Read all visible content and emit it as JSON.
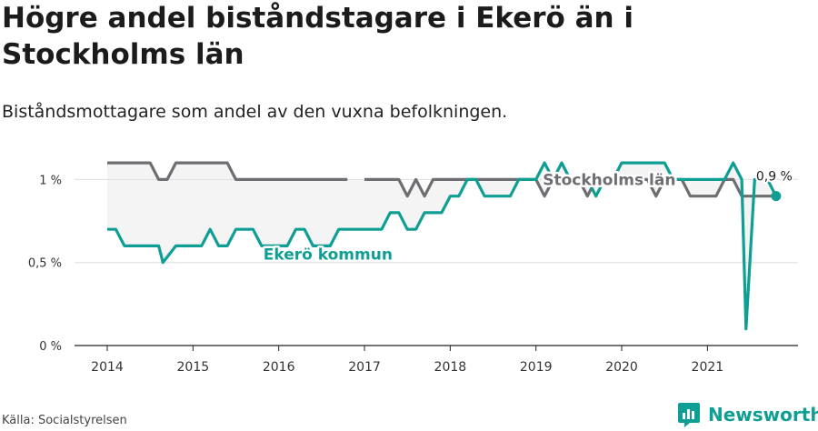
{
  "title": "Högre andel biståndstagare i Ekerö än i Stockholms län",
  "subtitle": "Biståndsmottagare som andel av den vuxna befolkningen.",
  "source": "Källa: Socialstyrelsen",
  "brand": "Newsworthy",
  "colors": {
    "ekero": "#0f9e93",
    "stockholm": "#6e6e72",
    "fill": "#f4f4f4",
    "grid": "#dddddd",
    "axis": "#222222"
  },
  "chart_data": {
    "type": "line",
    "xlim": [
      2014,
      2021.95
    ],
    "ylim": [
      0,
      1.15
    ],
    "x_ticks": [
      {
        "value": 2014,
        "label": "2014"
      },
      {
        "value": 2015,
        "label": "2015"
      },
      {
        "value": 2016,
        "label": "2016"
      },
      {
        "value": 2017,
        "label": "2017"
      },
      {
        "value": 2018,
        "label": "2018"
      },
      {
        "value": 2019,
        "label": "2019"
      },
      {
        "value": 2020,
        "label": "2020"
      },
      {
        "value": 2021,
        "label": "2021"
      }
    ],
    "y_ticks": [
      {
        "value": 0,
        "label": "0 %"
      },
      {
        "value": 0.5,
        "label": "0,5 %"
      },
      {
        "value": 1.0,
        "label": "1 %"
      }
    ],
    "grid": true,
    "series": [
      {
        "name": "Stockholms län",
        "key": "stockholm",
        "label_at": {
          "x": 2019.08,
          "y": 1.0
        },
        "points": [
          [
            2014.0,
            1.1
          ],
          [
            2014.1,
            1.1
          ],
          [
            2014.2,
            1.1
          ],
          [
            2014.3,
            1.1
          ],
          [
            2014.4,
            1.1
          ],
          [
            2014.5,
            1.1
          ],
          [
            2014.6,
            1.0
          ],
          [
            2014.7,
            1.0
          ],
          [
            2014.8,
            1.1
          ],
          [
            2014.9,
            1.1
          ],
          [
            2015.0,
            1.1
          ],
          [
            2015.1,
            1.1
          ],
          [
            2015.2,
            1.1
          ],
          [
            2015.3,
            1.1
          ],
          [
            2015.4,
            1.1
          ],
          [
            2015.5,
            1.0
          ],
          [
            2015.6,
            1.0
          ],
          [
            2015.7,
            1.0
          ],
          [
            2015.8,
            1.0
          ],
          [
            2015.9,
            1.0
          ],
          [
            2016.0,
            1.0
          ],
          [
            2016.1,
            1.0
          ],
          [
            2016.2,
            1.0
          ],
          [
            2016.3,
            1.0
          ],
          [
            2016.4,
            1.0
          ],
          [
            2016.5,
            1.0
          ],
          [
            2016.6,
            1.0
          ],
          [
            2016.7,
            1.0
          ],
          [
            2016.8,
            1.0
          ],
          null,
          [
            2017.0,
            1.0
          ],
          [
            2017.1,
            1.0
          ],
          [
            2017.2,
            1.0
          ],
          [
            2017.3,
            1.0
          ],
          [
            2017.4,
            1.0
          ],
          [
            2017.5,
            0.9
          ],
          [
            2017.6,
            1.0
          ],
          [
            2017.7,
            0.9
          ],
          [
            2017.8,
            1.0
          ],
          [
            2017.9,
            1.0
          ],
          [
            2018.0,
            1.0
          ],
          [
            2018.1,
            1.0
          ],
          [
            2018.2,
            1.0
          ],
          [
            2018.3,
            1.0
          ],
          [
            2018.4,
            1.0
          ],
          [
            2018.5,
            1.0
          ],
          [
            2018.6,
            1.0
          ],
          [
            2018.7,
            1.0
          ],
          [
            2018.8,
            1.0
          ],
          [
            2018.9,
            1.0
          ],
          [
            2019.0,
            1.0
          ],
          [
            2019.1,
            0.9
          ],
          [
            2019.2,
            1.0
          ],
          [
            2019.3,
            1.0
          ],
          [
            2019.4,
            1.0
          ],
          [
            2019.5,
            1.0
          ],
          [
            2019.6,
            0.9
          ],
          [
            2019.7,
            1.0
          ],
          [
            2019.8,
            1.0
          ],
          [
            2019.9,
            1.0
          ],
          [
            2020.0,
            1.0
          ],
          [
            2020.1,
            1.0
          ],
          [
            2020.2,
            1.0
          ],
          [
            2020.3,
            1.0
          ],
          [
            2020.4,
            0.9
          ],
          [
            2020.5,
            1.0
          ],
          [
            2020.6,
            1.0
          ],
          [
            2020.7,
            1.0
          ],
          [
            2020.8,
            0.9
          ],
          [
            2020.9,
            0.9
          ],
          [
            2021.0,
            0.9
          ],
          [
            2021.1,
            0.9
          ],
          [
            2021.2,
            1.0
          ],
          [
            2021.3,
            1.0
          ],
          [
            2021.4,
            0.9
          ],
          [
            2021.5,
            0.9
          ],
          [
            2021.6,
            0.9
          ],
          [
            2021.7,
            0.9
          ],
          [
            2021.8,
            0.9
          ]
        ]
      },
      {
        "name": "Ekerö kommun",
        "key": "ekero",
        "label_at": {
          "x": 2015.8,
          "y": 0.6
        },
        "end_label": "0,9 %",
        "points": [
          [
            2014.0,
            0.7
          ],
          [
            2014.1,
            0.7
          ],
          [
            2014.2,
            0.6
          ],
          [
            2014.3,
            0.6
          ],
          [
            2014.4,
            0.6
          ],
          [
            2014.5,
            0.6
          ],
          [
            2014.6,
            0.6
          ],
          [
            2014.65,
            0.5
          ],
          [
            2014.8,
            0.6
          ],
          [
            2014.9,
            0.6
          ],
          [
            2015.0,
            0.6
          ],
          [
            2015.1,
            0.6
          ],
          [
            2015.2,
            0.7
          ],
          [
            2015.3,
            0.6
          ],
          [
            2015.4,
            0.6
          ],
          [
            2015.5,
            0.7
          ],
          [
            2015.6,
            0.7
          ],
          [
            2015.7,
            0.7
          ],
          [
            2015.8,
            0.6
          ],
          [
            2015.9,
            0.6
          ],
          [
            2016.0,
            0.6
          ],
          [
            2016.1,
            0.6
          ],
          [
            2016.2,
            0.7
          ],
          [
            2016.3,
            0.7
          ],
          [
            2016.4,
            0.6
          ],
          [
            2016.5,
            0.6
          ],
          [
            2016.6,
            0.6
          ],
          [
            2016.7,
            0.7
          ],
          [
            2016.8,
            0.7
          ],
          [
            2016.9,
            0.7
          ],
          [
            2017.0,
            0.7
          ],
          [
            2017.1,
            0.7
          ],
          [
            2017.2,
            0.7
          ],
          [
            2017.3,
            0.8
          ],
          [
            2017.4,
            0.8
          ],
          [
            2017.5,
            0.7
          ],
          [
            2017.6,
            0.7
          ],
          [
            2017.7,
            0.8
          ],
          [
            2017.8,
            0.8
          ],
          [
            2017.9,
            0.8
          ],
          [
            2018.0,
            0.9
          ],
          [
            2018.1,
            0.9
          ],
          [
            2018.2,
            1.0
          ],
          [
            2018.3,
            1.0
          ],
          [
            2018.4,
            0.9
          ],
          [
            2018.5,
            0.9
          ],
          [
            2018.6,
            0.9
          ],
          [
            2018.7,
            0.9
          ],
          [
            2018.8,
            1.0
          ],
          [
            2018.9,
            1.0
          ],
          [
            2019.0,
            1.0
          ],
          [
            2019.1,
            1.1
          ],
          [
            2019.2,
            1.0
          ],
          [
            2019.3,
            1.1
          ],
          [
            2019.4,
            1.0
          ],
          [
            2019.5,
            1.0
          ],
          [
            2019.6,
            1.0
          ],
          [
            2019.7,
            0.9
          ],
          [
            2019.8,
            1.0
          ],
          [
            2019.9,
            1.0
          ],
          [
            2020.0,
            1.1
          ],
          [
            2020.1,
            1.1
          ],
          [
            2020.2,
            1.1
          ],
          [
            2020.3,
            1.1
          ],
          [
            2020.4,
            1.1
          ],
          [
            2020.5,
            1.1
          ],
          [
            2020.6,
            1.0
          ],
          [
            2020.7,
            1.0
          ],
          [
            2020.8,
            1.0
          ],
          [
            2020.9,
            1.0
          ],
          [
            2021.0,
            1.0
          ],
          [
            2021.1,
            1.0
          ],
          [
            2021.2,
            1.0
          ],
          [
            2021.3,
            1.1
          ],
          [
            2021.4,
            1.0
          ],
          [
            2021.45,
            0.1
          ],
          [
            2021.55,
            1.0
          ],
          [
            2021.6,
            1.0
          ],
          [
            2021.7,
            1.0
          ],
          [
            2021.8,
            0.9
          ]
        ]
      }
    ]
  }
}
